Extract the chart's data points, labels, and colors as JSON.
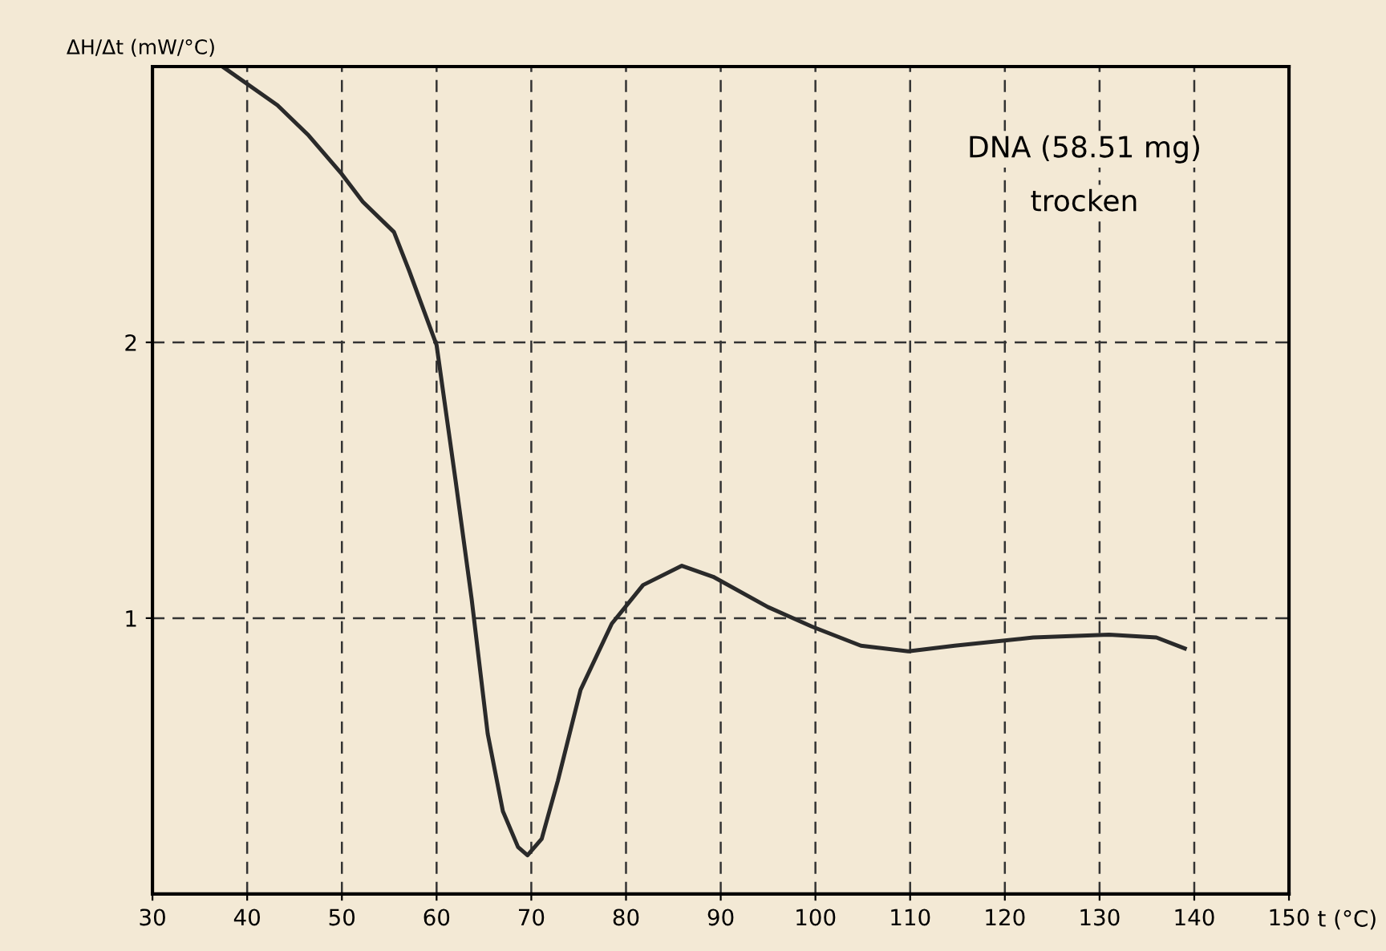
{
  "chart_data": {
    "type": "line",
    "xlabel": "t (°C)",
    "ylabel": "ΔH/Δt (mW/°C)",
    "annotations": [
      "DNA (58.51 mg)",
      "trocken"
    ],
    "x": [
      37.4,
      43.2,
      46.5,
      50,
      52.2,
      55.5,
      57.1,
      60,
      62,
      63.7,
      65.4,
      67,
      68.6,
      69.6,
      71.1,
      72.8,
      75.2,
      78.5,
      81.8,
      85.9,
      89.2,
      95,
      99.6,
      104.8,
      109.8,
      114.7,
      123,
      131,
      136,
      139
    ],
    "series": [
      {
        "color": "#2a2a2a",
        "values": [
          3.0,
          2.86,
          2.75,
          2.61,
          2.51,
          2.4,
          2.26,
          1.99,
          1.5,
          1.07,
          0.58,
          0.3,
          0.17,
          0.14,
          0.2,
          0.41,
          0.74,
          0.98,
          1.12,
          1.19,
          1.15,
          1.04,
          0.97,
          0.9,
          0.88,
          0.9,
          0.93,
          0.94,
          0.93,
          0.89
        ]
      }
    ],
    "xlim": [
      30,
      150
    ],
    "ylim": [
      0,
      3
    ],
    "xticks": [
      30,
      40,
      50,
      60,
      70,
      80,
      90,
      100,
      110,
      120,
      130,
      140,
      150
    ],
    "yticks": [
      1,
      2
    ],
    "grid": true,
    "line_style": "solid",
    "marker": "none"
  }
}
